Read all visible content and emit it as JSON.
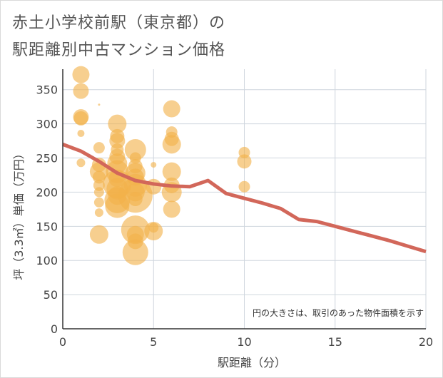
{
  "title": {
    "line1": "赤土小学校前駅（東京都）の",
    "line2": "駅距離別中古マンション価格"
  },
  "chart_data": {
    "type": "scatter",
    "xlabel": "駅距離（分）",
    "ylabel": "坪（3.3㎡）単価（万円）",
    "xlim": [
      0,
      20
    ],
    "ylim": [
      0,
      380
    ],
    "xticks": [
      "0",
      "5",
      "10",
      "15",
      "20"
    ],
    "yticks": [
      "0",
      "50",
      "100",
      "150",
      "200",
      "250",
      "300",
      "350"
    ],
    "note": "円の大きさは、取引のあった物件面積を示す",
    "bubbles": [
      {
        "x": 1,
        "y": 372,
        "s": 12
      },
      {
        "x": 1,
        "y": 348,
        "s": 11
      },
      {
        "x": 1,
        "y": 310,
        "s": 11
      },
      {
        "x": 1,
        "y": 308,
        "s": 10
      },
      {
        "x": 1,
        "y": 286,
        "s": 5
      },
      {
        "x": 1,
        "y": 243,
        "s": 6
      },
      {
        "x": 2,
        "y": 328,
        "s": 1.5
      },
      {
        "x": 2,
        "y": 265,
        "s": 8
      },
      {
        "x": 2,
        "y": 240,
        "s": 10
      },
      {
        "x": 2,
        "y": 230,
        "s": 13
      },
      {
        "x": 2,
        "y": 222,
        "s": 9
      },
      {
        "x": 2,
        "y": 210,
        "s": 8
      },
      {
        "x": 2,
        "y": 200,
        "s": 7
      },
      {
        "x": 2,
        "y": 185,
        "s": 7
      },
      {
        "x": 2,
        "y": 170,
        "s": 6
      },
      {
        "x": 2,
        "y": 138,
        "s": 13
      },
      {
        "x": 3,
        "y": 300,
        "s": 13
      },
      {
        "x": 3,
        "y": 282,
        "s": 10
      },
      {
        "x": 3,
        "y": 275,
        "s": 11
      },
      {
        "x": 3,
        "y": 262,
        "s": 9
      },
      {
        "x": 3,
        "y": 252,
        "s": 11
      },
      {
        "x": 3,
        "y": 242,
        "s": 14
      },
      {
        "x": 3,
        "y": 230,
        "s": 16
      },
      {
        "x": 3,
        "y": 220,
        "s": 12
      },
      {
        "x": 3,
        "y": 212,
        "s": 20
      },
      {
        "x": 3,
        "y": 205,
        "s": 15
      },
      {
        "x": 3,
        "y": 195,
        "s": 13
      },
      {
        "x": 3,
        "y": 188,
        "s": 18
      },
      {
        "x": 3,
        "y": 180,
        "s": 17
      },
      {
        "x": 4,
        "y": 262,
        "s": 15
      },
      {
        "x": 4,
        "y": 250,
        "s": 8
      },
      {
        "x": 4,
        "y": 238,
        "s": 10
      },
      {
        "x": 4,
        "y": 228,
        "s": 14
      },
      {
        "x": 4,
        "y": 222,
        "s": 12
      },
      {
        "x": 4,
        "y": 210,
        "s": 16
      },
      {
        "x": 4,
        "y": 200,
        "s": 13
      },
      {
        "x": 4,
        "y": 195,
        "s": 24
      },
      {
        "x": 4,
        "y": 190,
        "s": 10
      },
      {
        "x": 4,
        "y": 145,
        "s": 20
      },
      {
        "x": 4,
        "y": 138,
        "s": 12
      },
      {
        "x": 4,
        "y": 128,
        "s": 11
      },
      {
        "x": 4,
        "y": 112,
        "s": 18
      },
      {
        "x": 5,
        "y": 240,
        "s": 4
      },
      {
        "x": 5,
        "y": 208,
        "s": 11
      },
      {
        "x": 5,
        "y": 148,
        "s": 7
      },
      {
        "x": 5,
        "y": 143,
        "s": 13
      },
      {
        "x": 6,
        "y": 322,
        "s": 12
      },
      {
        "x": 6,
        "y": 288,
        "s": 8
      },
      {
        "x": 6,
        "y": 278,
        "s": 10
      },
      {
        "x": 6,
        "y": 270,
        "s": 13
      },
      {
        "x": 6,
        "y": 230,
        "s": 13
      },
      {
        "x": 6,
        "y": 210,
        "s": 11
      },
      {
        "x": 6,
        "y": 200,
        "s": 14
      },
      {
        "x": 6,
        "y": 175,
        "s": 12
      },
      {
        "x": 10,
        "y": 258,
        "s": 8
      },
      {
        "x": 10,
        "y": 245,
        "s": 10
      },
      {
        "x": 10,
        "y": 208,
        "s": 8
      }
    ],
    "trend_line": {
      "x": [
        0,
        1,
        2,
        3,
        4,
        5,
        6,
        7,
        8,
        9,
        10,
        11,
        12,
        13,
        14,
        15,
        16,
        17,
        18,
        19,
        20
      ],
      "y": [
        270,
        260,
        245,
        228,
        217,
        212,
        209,
        208,
        217,
        198,
        191,
        184,
        176,
        160,
        157,
        150,
        143,
        136,
        129,
        121,
        113
      ]
    },
    "colors": {
      "bubble": "#f2b24b",
      "line": "#d2675a",
      "grid": "#cfd6de",
      "axis": "#333333"
    }
  }
}
